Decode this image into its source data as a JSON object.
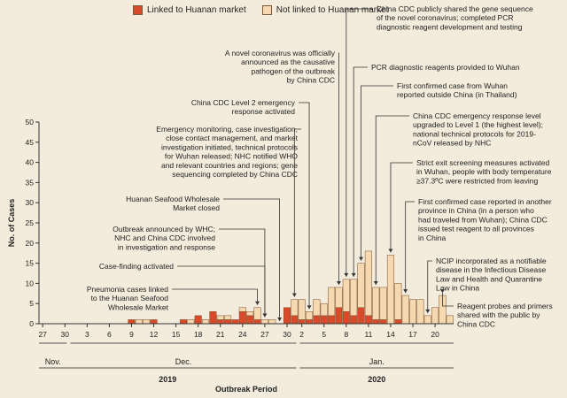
{
  "chart_data": {
    "type": "bar",
    "stacked": true,
    "ylabel": "No. of Cases",
    "xlabel": "Outbreak Period",
    "ylim": [
      0,
      50
    ],
    "yticks": [
      0,
      5,
      10,
      15,
      20,
      25,
      30,
      35,
      40,
      45,
      50
    ],
    "grid": false,
    "legend_position": "top",
    "colors": {
      "linked": "#d94a2b",
      "not_linked": "#f5d9b0",
      "bar_edge": "#7a4a2a",
      "background": "#f3ecdc"
    },
    "x_tick_labels": [
      "27",
      "30",
      "3",
      "6",
      "9",
      "12",
      "15",
      "18",
      "21",
      "24",
      "27",
      "30",
      "2",
      "5",
      "8",
      "11",
      "14",
      "17",
      "20"
    ],
    "months": [
      "Nov.",
      "Dec.",
      "Jan."
    ],
    "years": [
      "2019",
      "2020"
    ],
    "series": [
      {
        "name": "Linked to Huanan market",
        "key": "linked",
        "values": [
          0,
          0,
          0,
          0,
          0,
          0,
          0,
          0,
          0,
          0,
          0,
          0,
          1,
          0,
          0,
          1,
          0,
          0,
          0,
          1,
          0,
          2,
          0,
          3,
          1,
          1,
          1,
          3,
          2,
          1,
          0,
          0,
          0,
          4,
          2,
          1,
          1,
          2,
          2,
          2,
          4,
          3,
          2,
          4,
          2,
          1,
          1,
          0,
          1,
          0,
          0,
          0,
          0,
          0,
          0,
          0
        ]
      },
      {
        "name": "Not linked to Huanan market",
        "key": "not_linked",
        "values": [
          0,
          0,
          0,
          0,
          0,
          0,
          0,
          0,
          0,
          0,
          0,
          0,
          0,
          1,
          1,
          0,
          0,
          0,
          0,
          0,
          1,
          0,
          1,
          0,
          1,
          1,
          0,
          1,
          1,
          3,
          1,
          1,
          0,
          0,
          4,
          5,
          2,
          4,
          3,
          7,
          5,
          8,
          9,
          11,
          16,
          8,
          8,
          17,
          9,
          7,
          6,
          6,
          2,
          4,
          7,
          2
        ]
      }
    ],
    "annotations": [
      {
        "text": "Pneumonia cases linked to the Huanan Seafood Wholesale Market"
      },
      {
        "text": "Case-finding activated"
      },
      {
        "text": "Outbreak announced by WHC; NHC and China CDC involved in investigation and response"
      },
      {
        "text": "Huanan Seafood Wholesale Market closed"
      },
      {
        "text": "Emergency monitoring, case investigation, close contact management, and market investigation initiated, technical protocols for Wuhan released; NHC notified WHO and relevant countries and regions; gene sequencing completed by China CDC"
      },
      {
        "text": "China CDC Level 2 emergency response activated"
      },
      {
        "text": "A novel coronavirus was officially announced as the causative pathogen of the outbreak by China CDC"
      },
      {
        "text": "China CDC publicly shared the gene sequence of the novel coronavirus; completed PCR diagnostic reagent development and testing"
      },
      {
        "text": "PCR diagnostic reagents provided to Wuhan"
      },
      {
        "text": "First confirmed case from Wuhan reported outside China (in Thailand)"
      },
      {
        "text": "China CDC emergency response level upgraded to Level 1 (the highest level); national technical protocols for 2019-nCoV released by NHC"
      },
      {
        "text": "Strict exit screening measures activated in Wuhan, people with body temperature ≥37.3ºC were restricted from leaving"
      },
      {
        "text": "First confirmed case reported in another province in China (in a person who had traveled from Wuhan); China CDC issued test reagent to all provinces in China"
      },
      {
        "text": "NCIP incorporated as a notifiable disease in the Infectious Disease Law and Health and Quarantine Law in China"
      },
      {
        "text": "Reagent probes and primers shared with the public by China CDC"
      }
    ]
  }
}
